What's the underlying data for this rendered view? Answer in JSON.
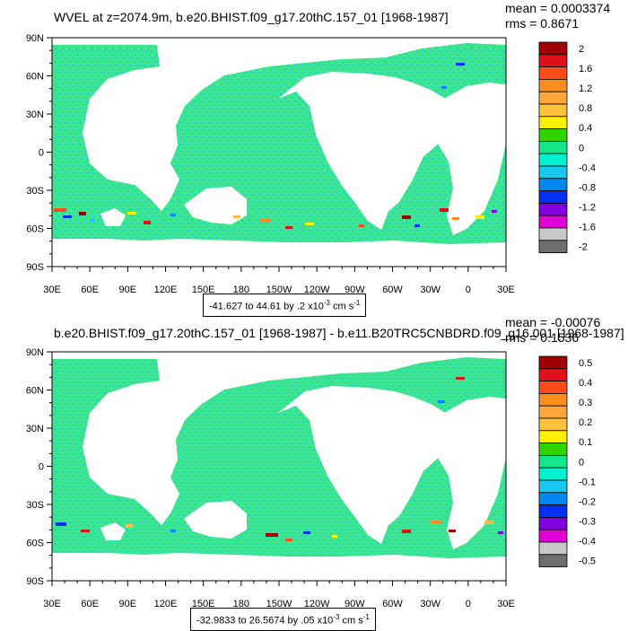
{
  "panels": [
    {
      "title": "WVEL at z=2074.9m, b.e20.BHIST.f09_g17.20thC.157_01 [1968-1987]",
      "stats": {
        "mean": "mean = 0.0003374",
        "rms": "rms = 0.8671"
      },
      "range_text": "-41.627 to 44.61 by .2",
      "units_text": "cm s",
      "scale_base": "x10",
      "scale_exp": "-3",
      "unit_exp": "-1",
      "colorbar_labels": [
        "2",
        "1.6",
        "1.2",
        "0.8",
        "0.4",
        "0",
        "-0.4",
        "-0.8",
        "-1.2",
        "-1.6",
        "-2"
      ]
    },
    {
      "title": "b.e20.BHIST.f09_g17.20thC.157_01 [1968-1987] - b.e11.B20TRC5CNBDRD.f09_g16.001 [1968-1987]",
      "stats": {
        "mean": "mean = -0.00076",
        "rms": "rms = 0.1536"
      },
      "range_text": "-32.9833 to 26.5674 by .05",
      "units_text": "cm s",
      "scale_base": "x10",
      "scale_exp": "-3",
      "unit_exp": "-1",
      "colorbar_labels": [
        "0.5",
        "0.4",
        "0.3",
        "0.2",
        "0.1",
        "0",
        "-0.1",
        "-0.2",
        "-0.3",
        "-0.4",
        "-0.5"
      ]
    }
  ],
  "colors": {
    "colorbar": [
      "#a00000",
      "#e0101a",
      "#ff4a1a",
      "#ff8c1e",
      "#ffa53a",
      "#ffc040",
      "#fff000",
      "#2fd300",
      "#14e88a",
      "#00f0d0",
      "#18c8f0",
      "#0088f0",
      "#0030f0",
      "#8000e0",
      "#e000d8",
      "#c8c8c8",
      "#6e6e6e"
    ],
    "ocean_main": "#3fe58a",
    "ocean_alt": "#22d6c4"
  },
  "chart_data": [
    {
      "type": "heatmap",
      "title": "WVEL at z=2074.9m, b.e20.BHIST.f09_g17.20thC.157_01 [1968-1987]",
      "xlabel": "",
      "ylabel": "",
      "x_ticks": [
        "30E",
        "60E",
        "90E",
        "120E",
        "150E",
        "180",
        "150W",
        "120W",
        "90W",
        "60W",
        "30W",
        "0",
        "30E"
      ],
      "y_ticks": [
        "90N",
        "60N",
        "30N",
        "0",
        "30S",
        "60S",
        "90S"
      ],
      "xlim": [
        30,
        390
      ],
      "ylim": [
        -90,
        90
      ],
      "colorbar_levels": [
        2,
        1.6,
        1.2,
        0.8,
        0.4,
        0,
        -0.4,
        -0.8,
        -1.2,
        -1.6,
        -2
      ],
      "mean": 0.0003374,
      "rms": 0.8671,
      "min": -41.627,
      "max": 44.61,
      "interval": 0.2,
      "units": "x10^-3 cm s^-1"
    },
    {
      "type": "heatmap",
      "title": "b.e20.BHIST.f09_g17.20thC.157_01 [1968-1987] - b.e11.B20TRC5CNBDRD.f09_g16.001 [1968-1987]",
      "xlabel": "",
      "ylabel": "",
      "x_ticks": [
        "30E",
        "60E",
        "90E",
        "120E",
        "150E",
        "180",
        "150W",
        "120W",
        "90W",
        "60W",
        "30W",
        "0",
        "30E"
      ],
      "y_ticks": [
        "90N",
        "60N",
        "30N",
        "0",
        "30S",
        "60S",
        "90S"
      ],
      "xlim": [
        30,
        390
      ],
      "ylim": [
        -90,
        90
      ],
      "colorbar_levels": [
        0.5,
        0.4,
        0.3,
        0.2,
        0.1,
        0,
        -0.1,
        -0.2,
        -0.3,
        -0.4,
        -0.5
      ],
      "mean": -0.00076,
      "rms": 0.1536,
      "min": -32.9833,
      "max": 26.5674,
      "interval": 0.05,
      "units": "x10^-3 cm s^-1"
    }
  ]
}
